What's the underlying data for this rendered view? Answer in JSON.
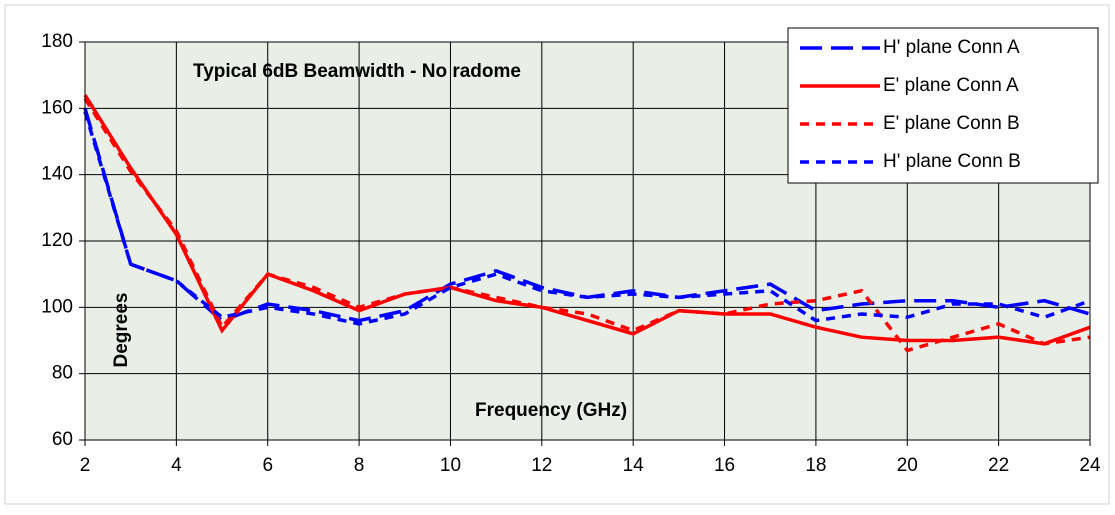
{
  "chart_data": {
    "type": "line",
    "annotations": [
      "Typical 6dB Beamwidth - No radome"
    ],
    "x_label": "Frequency  (GHz)",
    "y_label": "Degrees",
    "x": [
      2,
      3,
      4,
      5,
      6,
      7,
      8,
      9,
      10,
      11,
      12,
      13,
      14,
      15,
      16,
      17,
      18,
      19,
      20,
      21,
      22,
      23,
      24
    ],
    "series": [
      {
        "name": "H' plane Conn A",
        "color": "#0000ff",
        "dash": "long-dash",
        "values": [
          160,
          113,
          108,
          96,
          101,
          99,
          96,
          99,
          107,
          111,
          106,
          103,
          105,
          103,
          105,
          107,
          99,
          101,
          102,
          102,
          100,
          102,
          98
        ]
      },
      {
        "name": "E' plane Conn A",
        "color": "#ff0000",
        "dash": "solid",
        "values": [
          164,
          142,
          122,
          93,
          110,
          105,
          99,
          104,
          106,
          102,
          100,
          96,
          92,
          99,
          98,
          98,
          94,
          91,
          90,
          90,
          91,
          89,
          94
        ]
      },
      {
        "name": "E' plane Conn B",
        "color": "#ff0000",
        "dash": "short-dash",
        "values": [
          163,
          141,
          123,
          94,
          110,
          106,
          100,
          104,
          106,
          103,
          100,
          98,
          93,
          99,
          98,
          101,
          102,
          105,
          87,
          91,
          95,
          89,
          91
        ]
      },
      {
        "name": "H' plane Conn B",
        "color": "#0000ff",
        "dash": "short-dash",
        "values": [
          159,
          113,
          108,
          97,
          100,
          98,
          95,
          98,
          106,
          110,
          105,
          103,
          104,
          103,
          104,
          105,
          96,
          98,
          97,
          101,
          101,
          97,
          102
        ]
      }
    ],
    "xlim": [
      2,
      24
    ],
    "xticks": [
      2,
      4,
      6,
      8,
      10,
      12,
      14,
      16,
      18,
      20,
      22,
      24
    ],
    "ylim": [
      60,
      180
    ],
    "yticks": [
      60,
      80,
      100,
      120,
      140,
      160,
      180
    ],
    "grid": true,
    "legend": "upper right"
  }
}
